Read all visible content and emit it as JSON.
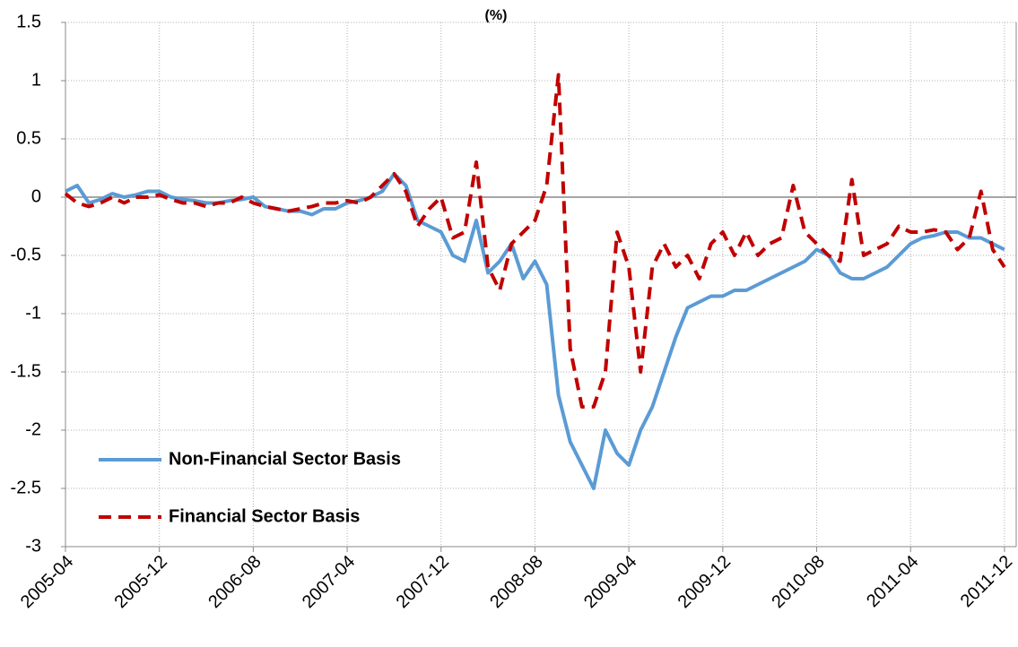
{
  "chart_data": {
    "type": "line",
    "title": "(%)",
    "x": [
      "2005-04",
      "2005-05",
      "2005-06",
      "2005-07",
      "2005-08",
      "2005-09",
      "2005-10",
      "2005-11",
      "2005-12",
      "2006-01",
      "2006-02",
      "2006-03",
      "2006-04",
      "2006-05",
      "2006-06",
      "2006-07",
      "2006-08",
      "2006-09",
      "2006-10",
      "2006-11",
      "2006-12",
      "2007-01",
      "2007-02",
      "2007-03",
      "2007-04",
      "2007-05",
      "2007-06",
      "2007-07",
      "2007-08",
      "2007-09",
      "2007-10",
      "2007-11",
      "2007-12",
      "2008-01",
      "2008-02",
      "2008-03",
      "2008-04",
      "2008-05",
      "2008-06",
      "2008-07",
      "2008-08",
      "2008-09",
      "2008-10",
      "2008-11",
      "2008-12",
      "2009-01",
      "2009-02",
      "2009-03",
      "2009-04",
      "2009-05",
      "2009-06",
      "2009-07",
      "2009-08",
      "2009-09",
      "2009-10",
      "2009-11",
      "2009-12",
      "2010-01",
      "2010-02",
      "2010-03",
      "2010-04",
      "2010-05",
      "2010-06",
      "2010-07",
      "2010-08",
      "2010-09",
      "2010-10",
      "2010-11",
      "2010-12",
      "2011-01",
      "2011-02",
      "2011-03",
      "2011-04",
      "2011-05",
      "2011-06",
      "2011-07",
      "2011-08",
      "2011-09",
      "2011-10",
      "2011-11",
      "2011-12"
    ],
    "series": [
      {
        "name": "Non-Financial Sector Basis",
        "color": "#5b9bd5",
        "dash": false,
        "values": [
          0.05,
          0.1,
          -0.05,
          -0.02,
          0.03,
          0.0,
          0.02,
          0.05,
          0.05,
          0.0,
          -0.02,
          -0.03,
          -0.05,
          -0.05,
          -0.03,
          -0.02,
          0.0,
          -0.08,
          -0.1,
          -0.12,
          -0.12,
          -0.15,
          -0.1,
          -0.1,
          -0.05,
          -0.03,
          0.0,
          0.05,
          0.2,
          0.1,
          -0.2,
          -0.25,
          -0.3,
          -0.5,
          -0.55,
          -0.2,
          -0.65,
          -0.55,
          -0.4,
          -0.7,
          -0.55,
          -0.75,
          -1.7,
          -2.1,
          -2.3,
          -2.5,
          -2.0,
          -2.2,
          -2.3,
          -2.0,
          -1.8,
          -1.5,
          -1.2,
          -0.95,
          -0.9,
          -0.85,
          -0.85,
          -0.8,
          -0.8,
          -0.75,
          -0.7,
          -0.65,
          -0.6,
          -0.55,
          -0.45,
          -0.5,
          -0.65,
          -0.7,
          -0.7,
          -0.65,
          -0.6,
          -0.5,
          -0.4,
          -0.35,
          -0.33,
          -0.3,
          -0.3,
          -0.35,
          -0.35,
          -0.4,
          -0.45
        ]
      },
      {
        "name": "Financial Sector Basis",
        "color": "#c00000",
        "dash": true,
        "values": [
          0.03,
          -0.05,
          -0.08,
          -0.05,
          0.0,
          -0.05,
          0.0,
          0.0,
          0.02,
          -0.02,
          -0.05,
          -0.05,
          -0.08,
          -0.05,
          -0.05,
          0.0,
          -0.05,
          -0.08,
          -0.1,
          -0.12,
          -0.1,
          -0.08,
          -0.05,
          -0.05,
          -0.03,
          -0.05,
          0.0,
          0.1,
          0.2,
          0.05,
          -0.25,
          -0.1,
          0.0,
          -0.35,
          -0.3,
          0.3,
          -0.6,
          -0.8,
          -0.4,
          -0.3,
          -0.2,
          0.1,
          1.05,
          -1.3,
          -1.8,
          -1.8,
          -1.5,
          -0.3,
          -0.6,
          -1.5,
          -0.6,
          -0.4,
          -0.6,
          -0.5,
          -0.7,
          -0.4,
          -0.3,
          -0.5,
          -0.3,
          -0.5,
          -0.4,
          -0.35,
          0.1,
          -0.3,
          -0.4,
          -0.5,
          -0.55,
          0.15,
          -0.5,
          -0.45,
          -0.4,
          -0.25,
          -0.3,
          -0.3,
          -0.28,
          -0.3,
          -0.45,
          -0.35,
          0.05,
          -0.45,
          -0.6
        ]
      }
    ],
    "xlim": [
      "2005-04",
      "2012-01"
    ],
    "xticks": [
      "2005-04",
      "2005-12",
      "2006-08",
      "2007-04",
      "2007-12",
      "2008-08",
      "2009-04",
      "2009-12",
      "2010-08",
      "2011-04",
      "2011-12"
    ],
    "ylim": [
      -3,
      1.5
    ],
    "yticks": [
      -3,
      -2.5,
      -2,
      -1.5,
      -1,
      -0.5,
      0,
      0.5,
      1,
      1.5
    ],
    "grid": true,
    "legend": "lower left"
  }
}
